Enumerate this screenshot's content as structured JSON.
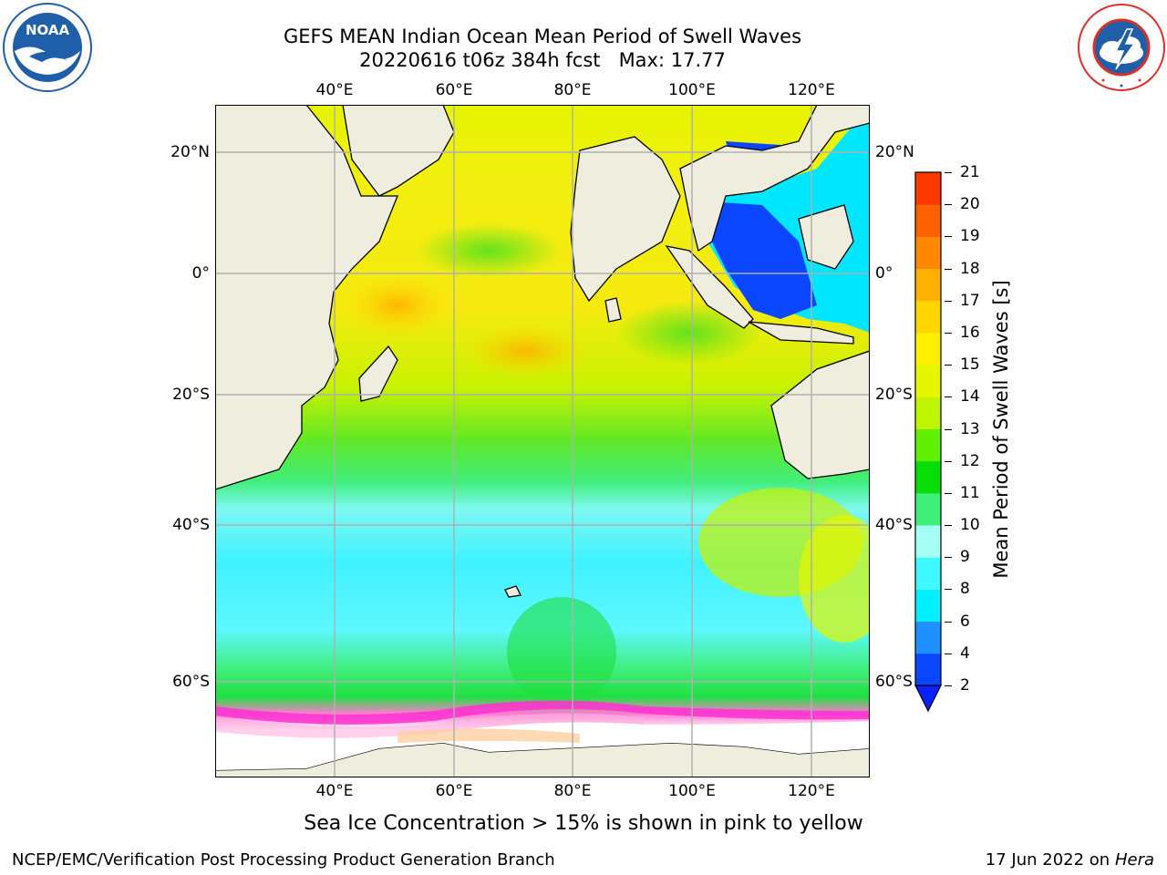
{
  "title_line1": "GEFS MEAN Indian Ocean Mean Period of Swell Waves",
  "title_line2_date": "20220616 t06z 384h fcst",
  "title_line2_max": "Max: 17.77",
  "logo_left": {
    "icon": "noaa-logo",
    "colors": {
      "blue": "#1f5ea8",
      "white": "#ffffff"
    }
  },
  "logo_right": {
    "icon": "national-weather-service-logo",
    "colors": {
      "red": "#d8322a",
      "blue": "#1f5ea8"
    }
  },
  "map": {
    "projection": "cylindrical",
    "lon_range": [
      20,
      130
    ],
    "lat_range": [
      -72,
      28
    ],
    "lon_labels": [
      {
        "lon": 40,
        "text": "40°E"
      },
      {
        "lon": 60,
        "text": "60°E"
      },
      {
        "lon": 80,
        "text": "80°E"
      },
      {
        "lon": 100,
        "text": "100°E"
      },
      {
        "lon": 120,
        "text": "120°E"
      }
    ],
    "lat_labels": [
      {
        "lat": 20,
        "text": "20°N"
      },
      {
        "lat": 0,
        "text": "0°"
      },
      {
        "lat": -20,
        "text": "20°S"
      },
      {
        "lat": -40,
        "text": "40°S"
      },
      {
        "lat": -60,
        "text": "60°S"
      }
    ],
    "grid": true,
    "colors": {
      "land": "#efedde",
      "grid": "#b0b0b0",
      "coast": "#000000",
      "no_data": "#ffffff"
    }
  },
  "colorbar": {
    "title": "Mean Period of Swell Waves [s]",
    "ticks": [
      "2",
      "4",
      "6",
      "8",
      "9",
      "10",
      "11",
      "12",
      "13",
      "14",
      "15",
      "16",
      "17",
      "18",
      "19",
      "20",
      "21"
    ],
    "colors": [
      "#0a46ff",
      "#1e90ff",
      "#00f0ff",
      "#40f8ff",
      "#a6fff5",
      "#40ee7a",
      "#08dd08",
      "#60f000",
      "#c0f500",
      "#e6f500",
      "#fff000",
      "#ffd700",
      "#ffb000",
      "#ff8800",
      "#ff6000",
      "#ff3800",
      "#ff0000"
    ],
    "extend_min_color": "#0a20ff"
  },
  "ice_note": "Sea Ice Concentration > 15% is shown in pink to yellow",
  "footer_left": "NCEP/EMC/Verification Post Processing Product Generation Branch",
  "footer_right_date": "17 Jun 2022 on",
  "footer_right_host": "Hera"
}
